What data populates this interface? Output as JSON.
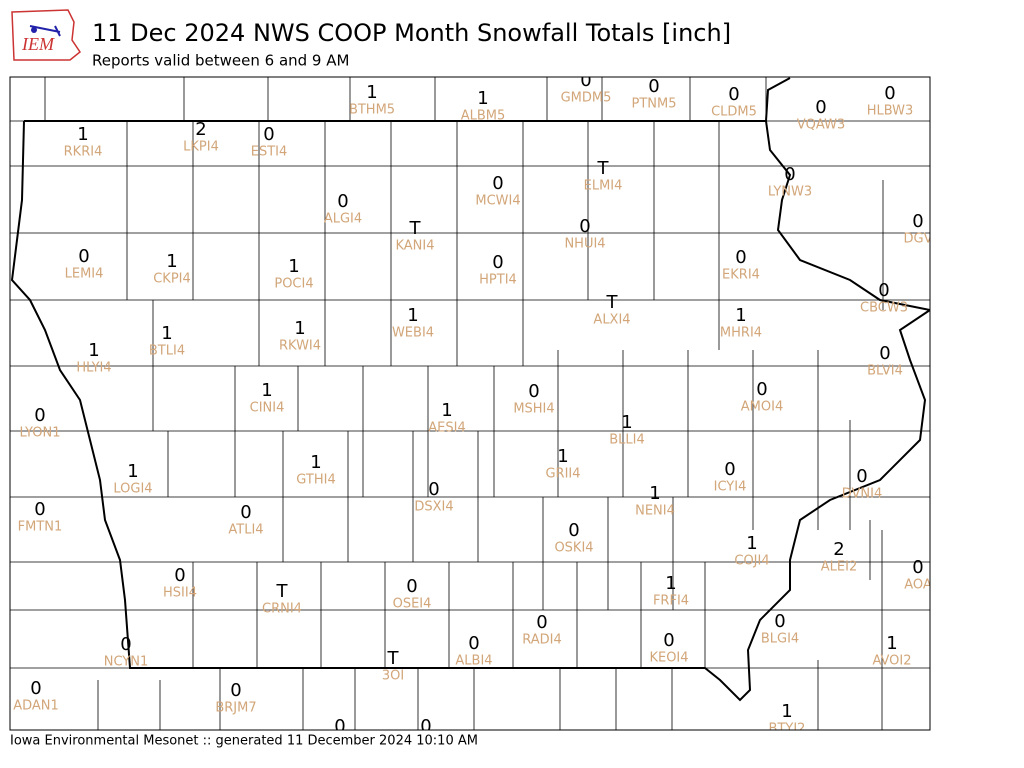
{
  "logo": "IEM",
  "title": "11 Dec 2024 NWS COOP Month Snowfall Totals [inch]",
  "subtitle": "Reports valid between 6 and 9 AM",
  "footer": "Iowa Environmental Mesonet :: generated 11 December 2024 10:10 AM",
  "stations": [
    {
      "id": "BTHM5",
      "value": 1
    },
    {
      "id": "ALBM5",
      "value": 1
    },
    {
      "id": "GMDM5",
      "value": 0
    },
    {
      "id": "PTNM5",
      "value": 0
    },
    {
      "id": "CLDM5",
      "value": 0
    },
    {
      "id": "VQAW3",
      "value": 0
    },
    {
      "id": "HLBW3",
      "value": 0
    },
    {
      "id": "RKRI4",
      "value": 1
    },
    {
      "id": "LKPI4",
      "value": 2
    },
    {
      "id": "ESTI4",
      "value": 0
    },
    {
      "id": "ELMI4",
      "value": "T"
    },
    {
      "id": "LYNW3",
      "value": 0
    },
    {
      "id": "ALGI4",
      "value": 0
    },
    {
      "id": "MCWI4",
      "value": 0
    },
    {
      "id": "KANI4",
      "value": "T"
    },
    {
      "id": "NHUI4",
      "value": 0
    },
    {
      "id": "DGV",
      "value": 0
    },
    {
      "id": "LEMI4",
      "value": 0
    },
    {
      "id": "CKPI4",
      "value": 1
    },
    {
      "id": "POCI4",
      "value": 1
    },
    {
      "id": "HPTI4",
      "value": 0
    },
    {
      "id": "EKRI4",
      "value": 0
    },
    {
      "id": "CBCW3",
      "value": 0
    },
    {
      "id": "ALXI4",
      "value": "T"
    },
    {
      "id": "WEBI4",
      "value": 1
    },
    {
      "id": "MHRI4",
      "value": 1
    },
    {
      "id": "RKWI4",
      "value": 1
    },
    {
      "id": "BTLI4",
      "value": 1
    },
    {
      "id": "BLVI4",
      "value": 0
    },
    {
      "id": "HLYI4",
      "value": 1
    },
    {
      "id": "AMOI4",
      "value": 0
    },
    {
      "id": "CINI4",
      "value": 1
    },
    {
      "id": "MSHI4",
      "value": 0
    },
    {
      "id": "AESI4",
      "value": 1
    },
    {
      "id": "BLLI4",
      "value": 1
    },
    {
      "id": "LYON1",
      "value": 0
    },
    {
      "id": "GRII4",
      "value": 1
    },
    {
      "id": "GTHI4",
      "value": 1
    },
    {
      "id": "ICYI4",
      "value": 0
    },
    {
      "id": "LOGI4",
      "value": 1
    },
    {
      "id": "DVNI4",
      "value": 0
    },
    {
      "id": "DSXI4",
      "value": 0
    },
    {
      "id": "NENI4",
      "value": 1
    },
    {
      "id": "FMTN1",
      "value": 0
    },
    {
      "id": "ATLI4",
      "value": 0
    },
    {
      "id": "OSKI4",
      "value": 0
    },
    {
      "id": "COJI4",
      "value": 1
    },
    {
      "id": "ALEI2",
      "value": 2
    },
    {
      "id": "AOA",
      "value": 0
    },
    {
      "id": "HSII4",
      "value": 0
    },
    {
      "id": "CRNI4",
      "value": "T"
    },
    {
      "id": "OSEI4",
      "value": 0
    },
    {
      "id": "FRFI4",
      "value": 1
    },
    {
      "id": "RADI4",
      "value": 0
    },
    {
      "id": "BLGI4",
      "value": 0
    },
    {
      "id": "NCYN1",
      "value": 0
    },
    {
      "id": "ALBI4",
      "value": 0
    },
    {
      "id": "KEOI4",
      "value": 0
    },
    {
      "id": "AVOI2",
      "value": 1
    },
    {
      "id": "3OI",
      "value": "T"
    },
    {
      "id": "ADAN1",
      "value": 0
    },
    {
      "id": "BRJM7",
      "value": 0
    },
    {
      "id": "BTYI2",
      "value": 1
    },
    {
      "value": 0
    },
    {
      "value": 0
    }
  ]
}
